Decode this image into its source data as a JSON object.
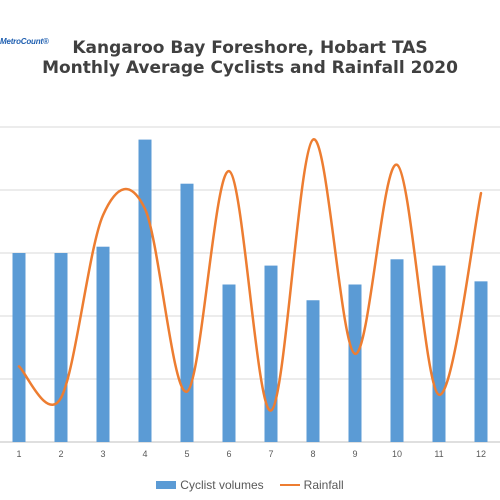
{
  "logo_text": "MetroCount®",
  "chart_data": {
    "type": "bar",
    "title_lines": [
      "Kangaroo Bay Foreshore, Hobart TAS",
      "Monthly Average Cyclists and Rainfall 2020"
    ],
    "categories": [
      "1",
      "2",
      "3",
      "4",
      "5",
      "6",
      "7",
      "8",
      "9",
      "10",
      "11",
      "12"
    ],
    "series": [
      {
        "name": "Cyclist volumes",
        "type": "bar",
        "color": "#5b9bd5",
        "values": [
          3.0,
          3.0,
          3.1,
          4.8,
          4.1,
          2.5,
          2.8,
          2.25,
          2.5,
          2.9,
          2.8,
          2.55
        ]
      },
      {
        "name": "Rainfall",
        "type": "line",
        "color": "#ed7d31",
        "values": [
          1.2,
          0.7,
          3.6,
          3.7,
          0.8,
          4.3,
          0.5,
          4.8,
          1.4,
          4.4,
          0.75,
          3.95
        ]
      }
    ],
    "ylim": [
      0,
      5
    ],
    "grid": true,
    "legend": "bottom"
  }
}
